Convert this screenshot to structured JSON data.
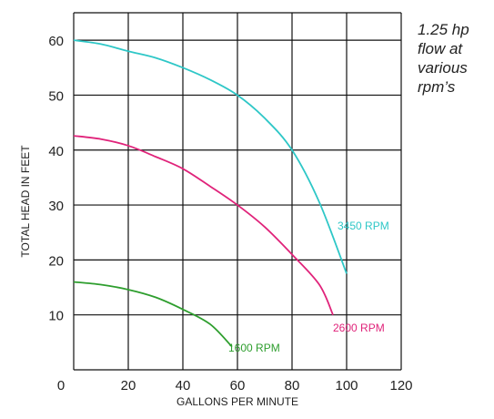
{
  "chart_data": {
    "type": "line",
    "xlabel": "GALLONS PER MINUTE",
    "ylabel": "TOTAL HEAD IN FEET",
    "xlim": [
      0,
      120
    ],
    "ylim": [
      0,
      65
    ],
    "x_ticks": [
      0,
      20,
      40,
      60,
      80,
      100,
      120
    ],
    "y_ticks": [
      10,
      20,
      30,
      40,
      50,
      60
    ],
    "grid": true,
    "note": [
      "1.25 hp",
      "flow at",
      "various",
      "rpm’s"
    ],
    "series": [
      {
        "name": "3450 RPM",
        "color": "#2ec7c7",
        "x": [
          0,
          10,
          20,
          30,
          40,
          50,
          60,
          70,
          80,
          90,
          100
        ],
        "y": [
          60,
          59.3,
          58,
          56.8,
          55,
          52.8,
          50,
          45.8,
          40,
          30.5,
          17.5
        ]
      },
      {
        "name": "2600 RPM",
        "color": "#e0237a",
        "x": [
          0,
          10,
          20,
          30,
          40,
          50,
          60,
          70,
          80,
          90,
          95
        ],
        "y": [
          42.6,
          42,
          40.8,
          38.8,
          36.6,
          33.4,
          30,
          26,
          21,
          15.5,
          10
        ]
      },
      {
        "name": "1600 RPM",
        "color": "#2e9e2e",
        "x": [
          0,
          10,
          20,
          30,
          40,
          50,
          58
        ],
        "y": [
          16,
          15.5,
          14.6,
          13.2,
          11,
          8.3,
          4.2
        ]
      }
    ]
  }
}
